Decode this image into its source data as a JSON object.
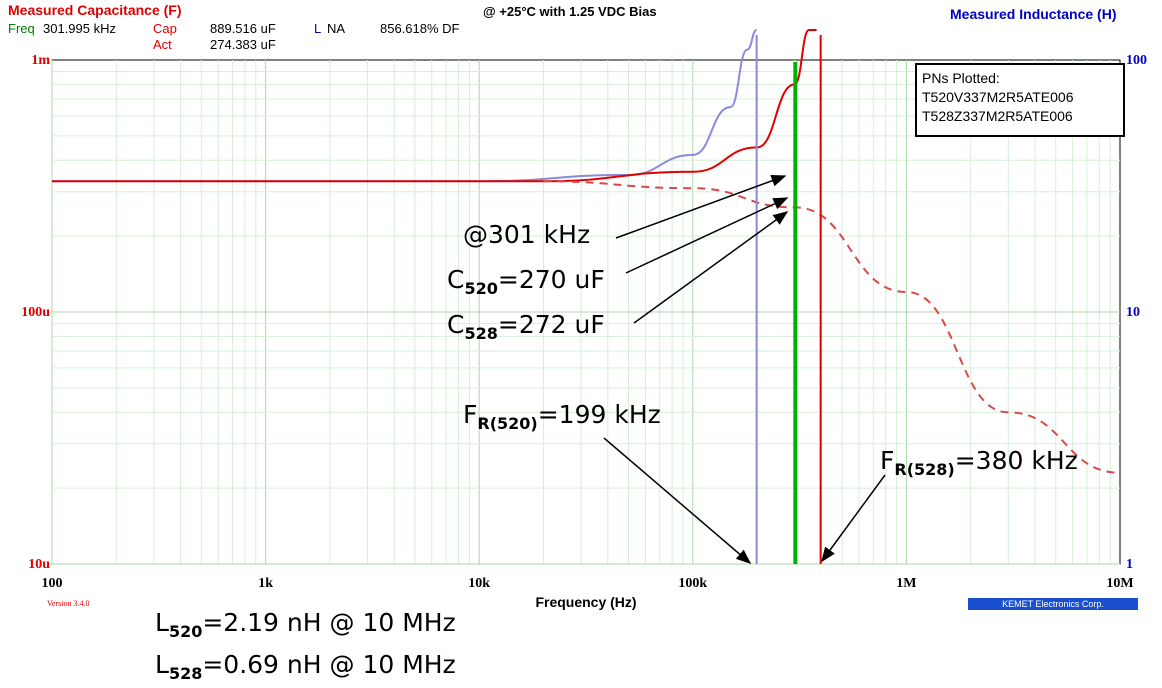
{
  "header": {
    "left_title": "Measured Capacitance (F)",
    "center_title": "@ +25°C with 1.25 VDC Bias",
    "right_title": "Measured Inductance (H)",
    "freq_label": "Freq",
    "freq_value": "301.995 kHz",
    "cap_label": "Cap",
    "cap_value": "889.516 uF",
    "l_label": "L",
    "l_value": "NA",
    "df_value": "856.618% DF",
    "act_label": "Act",
    "act_value": "274.383 uF"
  },
  "legend": {
    "title": "PNs Plotted:",
    "items": [
      "T520V337M2R5ATE006",
      "T528Z337M2R5ATE006"
    ]
  },
  "annotations": {
    "freq_at": "@301 kHz",
    "c520_main": "C",
    "c520_sub": "520",
    "c520_val": "=270 uF",
    "c528_main": "C",
    "c528_sub": "528",
    "c528_val": "=272 uF",
    "fr520_main": "F",
    "fr520_sub": "R(520)",
    "fr520_val": "=199 kHz",
    "fr528_main": "F",
    "fr528_sub": "R(528)",
    "fr528_val": "=380 kHz",
    "l520_main": "L",
    "l520_sub": "520",
    "l520_val": "=2.19 nH @ 10 MHz",
    "l528_main": "L",
    "l528_sub": "528",
    "l528_val": "=0.69 nH @ 10 MHz"
  },
  "footer": {
    "version": "Version 3.4.0",
    "brand": "KEMET Electronics Corp."
  },
  "chart_data": {
    "type": "line",
    "xlabel": "Frequency (Hz)",
    "x_scale": "log",
    "xlim": [
      100,
      10000000
    ],
    "x_ticks": [
      "100",
      "1k",
      "10k",
      "100k",
      "1M",
      "10M"
    ],
    "y_scale": "log",
    "ylim": [
      1e-05,
      0.001
    ],
    "y_ticks": [
      "10u",
      "100u",
      "1m"
    ],
    "y2_scale": "log",
    "y2_ticks": [
      "1",
      "10",
      "100"
    ],
    "grid": true,
    "marker_frequency": 301995,
    "series": [
      {
        "color": "#8a8ad8",
        "style": "solid",
        "x": [
          100,
          10000,
          50000,
          100000,
          150000,
          180000,
          199000
        ],
        "y": [
          0.00033,
          0.00033,
          0.00035,
          0.00042,
          0.00065,
          0.0011,
          0.002
        ]
      },
      {
        "color": "#e00000",
        "style": "solid",
        "x": [
          100,
          10000,
          20000,
          100000,
          200000,
          300000,
          350000,
          380000
        ],
        "y": [
          0.00033,
          0.00033,
          0.00033,
          0.00036,
          0.00045,
          0.0008,
          0.0015,
          0.0025
        ]
      },
      {
        "color": "#d84a4a",
        "style": "dashed",
        "x": [
          20000,
          100000,
          300000,
          1000000,
          3000000,
          10000000
        ],
        "y": [
          0.00033,
          0.00031,
          0.00026,
          0.00012,
          4e-05,
          2.3e-05
        ]
      }
    ]
  },
  "colors": {
    "cap_axis": "#e00000",
    "ind_axis": "#0000c0",
    "marker": "#00b000",
    "resonance_520": "#8a8ad8",
    "resonance_528": "#e00000"
  }
}
